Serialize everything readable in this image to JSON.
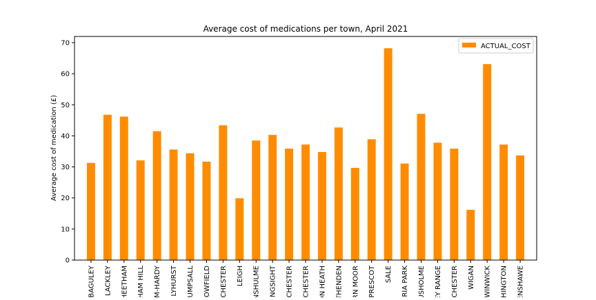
{
  "chart_data": {
    "type": "bar",
    "title": "Average cost of medications per town, April 2021",
    "xlabel": "",
    "ylabel": "Average cost of medication (£)",
    "ylim": [
      0,
      72
    ],
    "yticks": [
      0,
      10,
      20,
      30,
      40,
      50,
      60,
      70
    ],
    "grid": false,
    "legend_position": "top-right",
    "bar_color": "#ff8c00",
    "categories": [
      "BAGULEY",
      "LACKLEY",
      "HEETHAM",
      "HAM HILL",
      "M-HARDY",
      "LYHURST",
      "UMPSALL",
      "OWFIELD",
      "CHESTER",
      "LEIGH",
      "NSHULME",
      "NGSIGHT",
      "CHESTER",
      "CHESTER",
      "ON HEATH",
      "THENDEN",
      "RN MOOR",
      "PRESCOT",
      "SALE",
      "RIA PARK",
      "USHOLME",
      "EY RANGE",
      "CHESTER",
      "WIGAN",
      "WINWICK",
      "HINGTON",
      "ENSHAWE"
    ],
    "series": [
      {
        "name": "ACTUAL_COST",
        "values": [
          31.3,
          46.8,
          46.2,
          32.1,
          41.5,
          35.6,
          34.4,
          31.7,
          43.4,
          19.9,
          38.5,
          40.3,
          35.9,
          37.2,
          34.8,
          42.7,
          29.7,
          38.9,
          68.2,
          31.1,
          47.1,
          37.8,
          35.9,
          16.2,
          63.1,
          37.2,
          33.7
        ]
      }
    ]
  }
}
